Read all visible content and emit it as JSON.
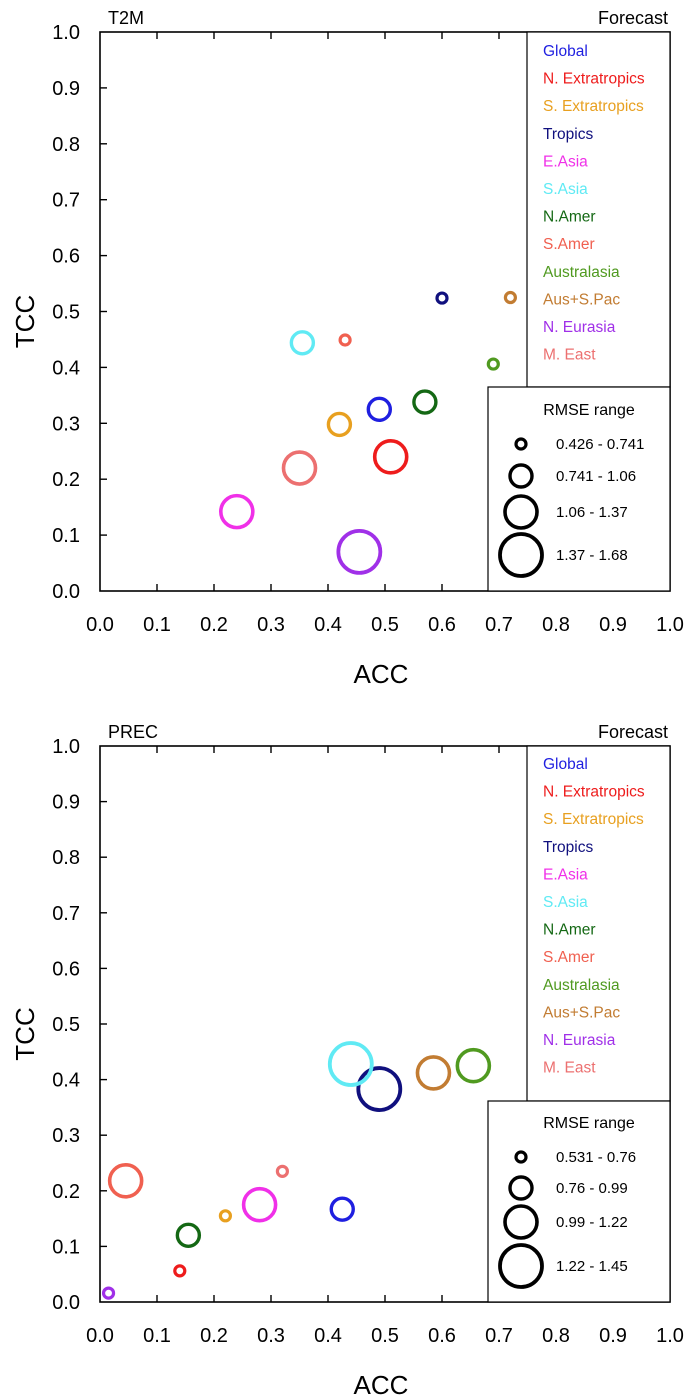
{
  "chart_data": [
    {
      "type": "scatter",
      "title": "T2M",
      "subtitle": "Forecast",
      "xlabel": "ACC",
      "ylabel": "TCC",
      "xlim": [
        0.0,
        1.0
      ],
      "ylim": [
        0.0,
        1.0
      ],
      "xticks": [
        "0.0",
        "0.1",
        "0.2",
        "0.3",
        "0.4",
        "0.5",
        "0.6",
        "0.7",
        "0.8",
        "0.9",
        "1.0"
      ],
      "yticks": [
        "0.0",
        "0.1",
        "0.2",
        "0.3",
        "0.4",
        "0.5",
        "0.6",
        "0.7",
        "0.8",
        "0.9",
        "1.0"
      ],
      "legend_title": "RMSE range",
      "rmse_bins": [
        "0.426 - 0.741",
        "0.741 -  1.06",
        "1.06 -  1.37",
        "1.37 -  1.68"
      ],
      "series": [
        {
          "name": "Global",
          "color": "#1f1fe0",
          "acc": 0.49,
          "tcc": 0.325,
          "rmse_bin": 1
        },
        {
          "name": "N. Extratropics",
          "color": "#ee1c1c",
          "acc": 0.51,
          "tcc": 0.24,
          "rmse_bin": 2
        },
        {
          "name": "S. Extratropics",
          "color": "#e8a020",
          "acc": 0.42,
          "tcc": 0.298,
          "rmse_bin": 1
        },
        {
          "name": "Tropics",
          "color": "#10107e",
          "acc": 0.6,
          "tcc": 0.524,
          "rmse_bin": 0
        },
        {
          "name": "E.Asia",
          "color": "#f030e8",
          "acc": 0.24,
          "tcc": 0.142,
          "rmse_bin": 2
        },
        {
          "name": "S.Asia",
          "color": "#60eaf4",
          "acc": 0.355,
          "tcc": 0.444,
          "rmse_bin": 1
        },
        {
          "name": "N.Amer",
          "color": "#146814",
          "acc": 0.57,
          "tcc": 0.338,
          "rmse_bin": 1
        },
        {
          "name": "S.Amer",
          "color": "#f06050",
          "acc": 0.43,
          "tcc": 0.449,
          "rmse_bin": 0
        },
        {
          "name": "Australasia",
          "color": "#509a20",
          "acc": 0.69,
          "tcc": 0.406,
          "rmse_bin": 0
        },
        {
          "name": "Aus+S.Pac",
          "color": "#c27c32",
          "acc": 0.72,
          "tcc": 0.525,
          "rmse_bin": 0
        },
        {
          "name": "N. Eurasia",
          "color": "#a030e8",
          "acc": 0.455,
          "tcc": 0.07,
          "rmse_bin": 3
        },
        {
          "name": "M. East",
          "color": "#ec7070",
          "acc": 0.35,
          "tcc": 0.22,
          "rmse_bin": 2
        }
      ]
    },
    {
      "type": "scatter",
      "title": "PREC",
      "subtitle": "Forecast",
      "xlabel": "ACC",
      "ylabel": "TCC",
      "xlim": [
        0.0,
        1.0
      ],
      "ylim": [
        0.0,
        1.0
      ],
      "xticks": [
        "0.0",
        "0.1",
        "0.2",
        "0.3",
        "0.4",
        "0.5",
        "0.6",
        "0.7",
        "0.8",
        "0.9",
        "1.0"
      ],
      "yticks": [
        "0.0",
        "0.1",
        "0.2",
        "0.3",
        "0.4",
        "0.5",
        "0.6",
        "0.7",
        "0.8",
        "0.9",
        "1.0"
      ],
      "legend_title": "RMSE range",
      "rmse_bins": [
        "0.531 -  0.76",
        "0.76 -  0.99",
        "0.99 -  1.22",
        "1.22 -  1.45"
      ],
      "series": [
        {
          "name": "Global",
          "color": "#1f1fe0",
          "acc": 0.425,
          "tcc": 0.167,
          "rmse_bin": 1
        },
        {
          "name": "N. Extratropics",
          "color": "#ee1c1c",
          "acc": 0.14,
          "tcc": 0.056,
          "rmse_bin": 0
        },
        {
          "name": "S. Extratropics",
          "color": "#e8a020",
          "acc": 0.22,
          "tcc": 0.155,
          "rmse_bin": 0
        },
        {
          "name": "Tropics",
          "color": "#10107e",
          "acc": 0.49,
          "tcc": 0.383,
          "rmse_bin": 3
        },
        {
          "name": "E.Asia",
          "color": "#f030e8",
          "acc": 0.28,
          "tcc": 0.175,
          "rmse_bin": 2
        },
        {
          "name": "S.Asia",
          "color": "#60eaf4",
          "acc": 0.44,
          "tcc": 0.428,
          "rmse_bin": 3
        },
        {
          "name": "N.Amer",
          "color": "#146814",
          "acc": 0.155,
          "tcc": 0.12,
          "rmse_bin": 1
        },
        {
          "name": "S.Amer",
          "color": "#f06050",
          "acc": 0.045,
          "tcc": 0.218,
          "rmse_bin": 2
        },
        {
          "name": "Australasia",
          "color": "#509a20",
          "acc": 0.655,
          "tcc": 0.425,
          "rmse_bin": 2
        },
        {
          "name": "Aus+S.Pac",
          "color": "#c27c32",
          "acc": 0.585,
          "tcc": 0.412,
          "rmse_bin": 2
        },
        {
          "name": "N. Eurasia",
          "color": "#a030e8",
          "acc": 0.015,
          "tcc": 0.016,
          "rmse_bin": 0
        },
        {
          "name": "M. East",
          "color": "#ec7070",
          "acc": 0.32,
          "tcc": 0.235,
          "rmse_bin": 0
        }
      ]
    }
  ]
}
